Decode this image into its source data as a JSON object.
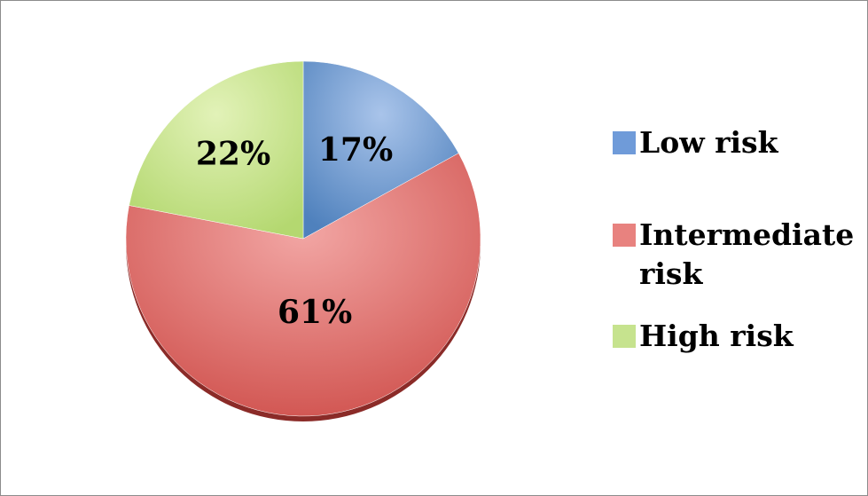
{
  "chart_data": {
    "type": "pie",
    "slices": [
      {
        "name": "Low risk",
        "value": 17,
        "label": "17%",
        "color": "#4f81bd"
      },
      {
        "name": "Intermediate risk",
        "value": 61,
        "label": "61%",
        "color": "#c0504d"
      },
      {
        "name": "High risk",
        "value": 22,
        "label": "22%",
        "color": "#9bbb59"
      }
    ],
    "legend": {
      "placement": "right",
      "entries": [
        "Low risk",
        "Intermediate risk",
        "High risk"
      ]
    }
  }
}
